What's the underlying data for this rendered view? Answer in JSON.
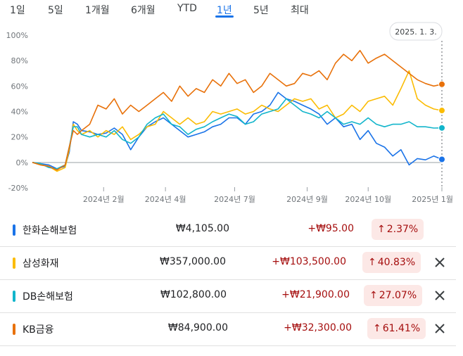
{
  "tabs": [
    {
      "label": "1일"
    },
    {
      "label": "5일"
    },
    {
      "label": "1개월"
    },
    {
      "label": "6개월"
    },
    {
      "label": "YTD"
    },
    {
      "label": "1년",
      "active": true
    },
    {
      "label": "5년"
    },
    {
      "label": "최대"
    }
  ],
  "tooltip": {
    "date": "2025. 1. 3."
  },
  "rows": [
    {
      "name": "한화손해보험",
      "price": "₩4,105.00",
      "change": "+₩95.00",
      "percent": "2.37%",
      "color": "#1a73e8",
      "closable": false
    },
    {
      "name": "삼성화재",
      "price": "₩357,000.00",
      "change": "+₩103,500.00",
      "percent": "40.83%",
      "color": "#fbbc04",
      "closable": true
    },
    {
      "name": "DB손해보험",
      "price": "₩102,800.00",
      "change": "+₩21,900.00",
      "percent": "27.07%",
      "color": "#12b5cb",
      "closable": true
    },
    {
      "name": "KB금융",
      "price": "₩84,900.00",
      "change": "+₩32,300.00",
      "percent": "61.41%",
      "color": "#e8710a",
      "closable": true
    }
  ],
  "icons": {
    "up_arrow": "arrow-up-icon",
    "close": "close-icon"
  },
  "chart_data": {
    "type": "line",
    "ylim": [
      -20,
      100
    ],
    "yticks": [
      "100%",
      "80%",
      "60%",
      "40%",
      "20%",
      "0%",
      "-20%"
    ],
    "ytick_values": [
      100,
      80,
      60,
      40,
      20,
      0,
      -20
    ],
    "xticks": [
      "2024년 2월",
      "2024년 4월",
      "2024년 7월",
      "2024년 9월",
      "2024년 10월",
      "2025년 1월"
    ],
    "xtick_positions": [
      0.174,
      0.325,
      0.494,
      0.671,
      0.82,
      1.0
    ],
    "grid": false,
    "x": [
      0,
      0.02,
      0.04,
      0.06,
      0.08,
      0.09,
      0.1,
      0.11,
      0.12,
      0.14,
      0.16,
      0.18,
      0.2,
      0.22,
      0.24,
      0.26,
      0.28,
      0.3,
      0.32,
      0.34,
      0.36,
      0.38,
      0.4,
      0.42,
      0.44,
      0.46,
      0.48,
      0.5,
      0.52,
      0.54,
      0.56,
      0.58,
      0.6,
      0.62,
      0.64,
      0.66,
      0.68,
      0.7,
      0.72,
      0.74,
      0.76,
      0.78,
      0.8,
      0.82,
      0.84,
      0.86,
      0.88,
      0.9,
      0.92,
      0.94,
      0.96,
      0.98,
      1.0
    ],
    "series": [
      {
        "name": "한화손해보험",
        "color": "#1a73e8",
        "values": [
          0,
          -1,
          -2,
          -5,
          -3,
          8,
          32,
          30,
          25,
          24,
          22,
          23,
          27,
          22,
          10,
          20,
          28,
          32,
          35,
          30,
          25,
          20,
          22,
          24,
          28,
          30,
          35,
          35,
          30,
          38,
          40,
          45,
          55,
          50,
          48,
          45,
          42,
          38,
          30,
          35,
          28,
          30,
          18,
          25,
          15,
          12,
          5,
          10,
          -2,
          3,
          2,
          5,
          2.4
        ]
      },
      {
        "name": "삼성화재",
        "color": "#fbbc04",
        "values": [
          0,
          -2,
          -3,
          -7,
          -4,
          10,
          30,
          25,
          22,
          25,
          20,
          25,
          22,
          28,
          18,
          22,
          28,
          30,
          40,
          35,
          30,
          35,
          30,
          32,
          40,
          38,
          40,
          42,
          38,
          40,
          45,
          42,
          40,
          45,
          50,
          48,
          50,
          42,
          45,
          35,
          38,
          45,
          40,
          48,
          50,
          52,
          45,
          58,
          72,
          50,
          45,
          42,
          40.8
        ]
      },
      {
        "name": "DB손해보험",
        "color": "#12b5cb",
        "values": [
          0,
          -1,
          -4,
          -5,
          -2,
          12,
          28,
          28,
          22,
          20,
          22,
          20,
          25,
          18,
          15,
          20,
          30,
          35,
          38,
          30,
          28,
          22,
          26,
          28,
          32,
          35,
          38,
          36,
          30,
          32,
          38,
          40,
          42,
          50,
          45,
          40,
          38,
          35,
          40,
          35,
          30,
          32,
          30,
          35,
          30,
          28,
          30,
          30,
          32,
          28,
          28,
          27,
          27.1
        ]
      },
      {
        "name": "KB금융",
        "color": "#e8710a",
        "values": [
          0,
          -2,
          -3,
          -6,
          -2,
          12,
          25,
          22,
          25,
          30,
          45,
          42,
          50,
          38,
          45,
          40,
          45,
          50,
          55,
          48,
          60,
          52,
          58,
          55,
          65,
          60,
          70,
          62,
          65,
          55,
          60,
          70,
          65,
          60,
          62,
          70,
          68,
          72,
          65,
          78,
          85,
          80,
          88,
          78,
          82,
          85,
          80,
          75,
          70,
          65,
          62,
          60,
          61.4
        ]
      }
    ]
  }
}
